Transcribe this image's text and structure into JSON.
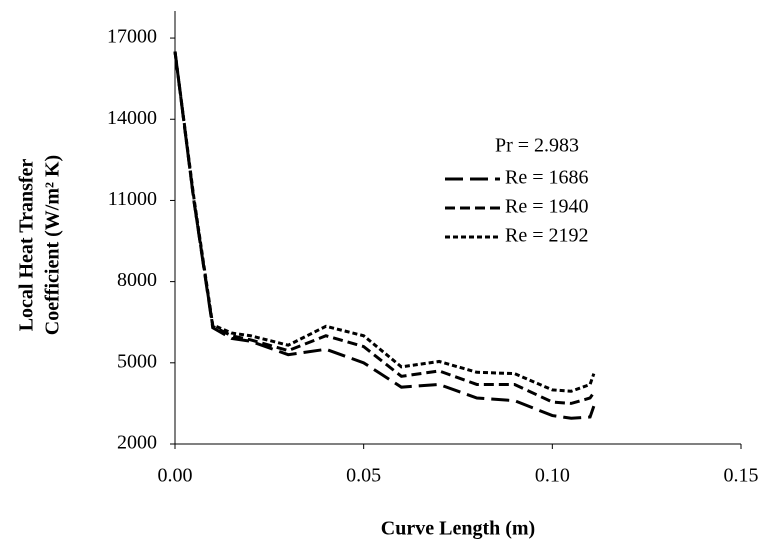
{
  "chart_data": {
    "type": "line",
    "x_label": "Curve Length (m)",
    "y_label": [
      "Local Heat Transfer",
      "Coefficient (W/m² K)"
    ],
    "legend_title": "Pr = 2.983",
    "x": [
      0,
      0.005,
      0.01,
      0.015,
      0.02,
      0.03,
      0.04,
      0.05,
      0.06,
      0.07,
      0.08,
      0.09,
      0.1,
      0.105,
      0.11,
      0.111
    ],
    "series": [
      {
        "name": "Re = 1686",
        "color": "#000000",
        "dash": "18 7",
        "values": [
          16500,
          11000,
          6300,
          5900,
          5800,
          5300,
          5500,
          5000,
          4100,
          4200,
          3700,
          3600,
          3050,
          2950,
          3000,
          3400
        ]
      },
      {
        "name": "Re = 1940",
        "color": "#000000",
        "dash": "10 5",
        "values": [
          16500,
          11000,
          6350,
          6000,
          5850,
          5450,
          6000,
          5600,
          4500,
          4700,
          4200,
          4200,
          3550,
          3500,
          3700,
          3900
        ]
      },
      {
        "name": "Re = 2192",
        "color": "#000000",
        "dash": "5 3",
        "values": [
          16500,
          11100,
          6400,
          6100,
          6000,
          5650,
          6350,
          6000,
          4850,
          5050,
          4650,
          4600,
          4000,
          3950,
          4200,
          4600
        ]
      }
    ],
    "xlim": [
      0,
      0.15
    ],
    "xticks": [
      {
        "value": 0,
        "label": "0.00"
      },
      0.05,
      {
        "value": 0.1,
        "label": "0.10"
      },
      0.15
    ],
    "ylim": [
      2000,
      18000
    ],
    "yticks": [
      2000,
      5000,
      8000,
      11000,
      14000,
      17000
    ]
  }
}
